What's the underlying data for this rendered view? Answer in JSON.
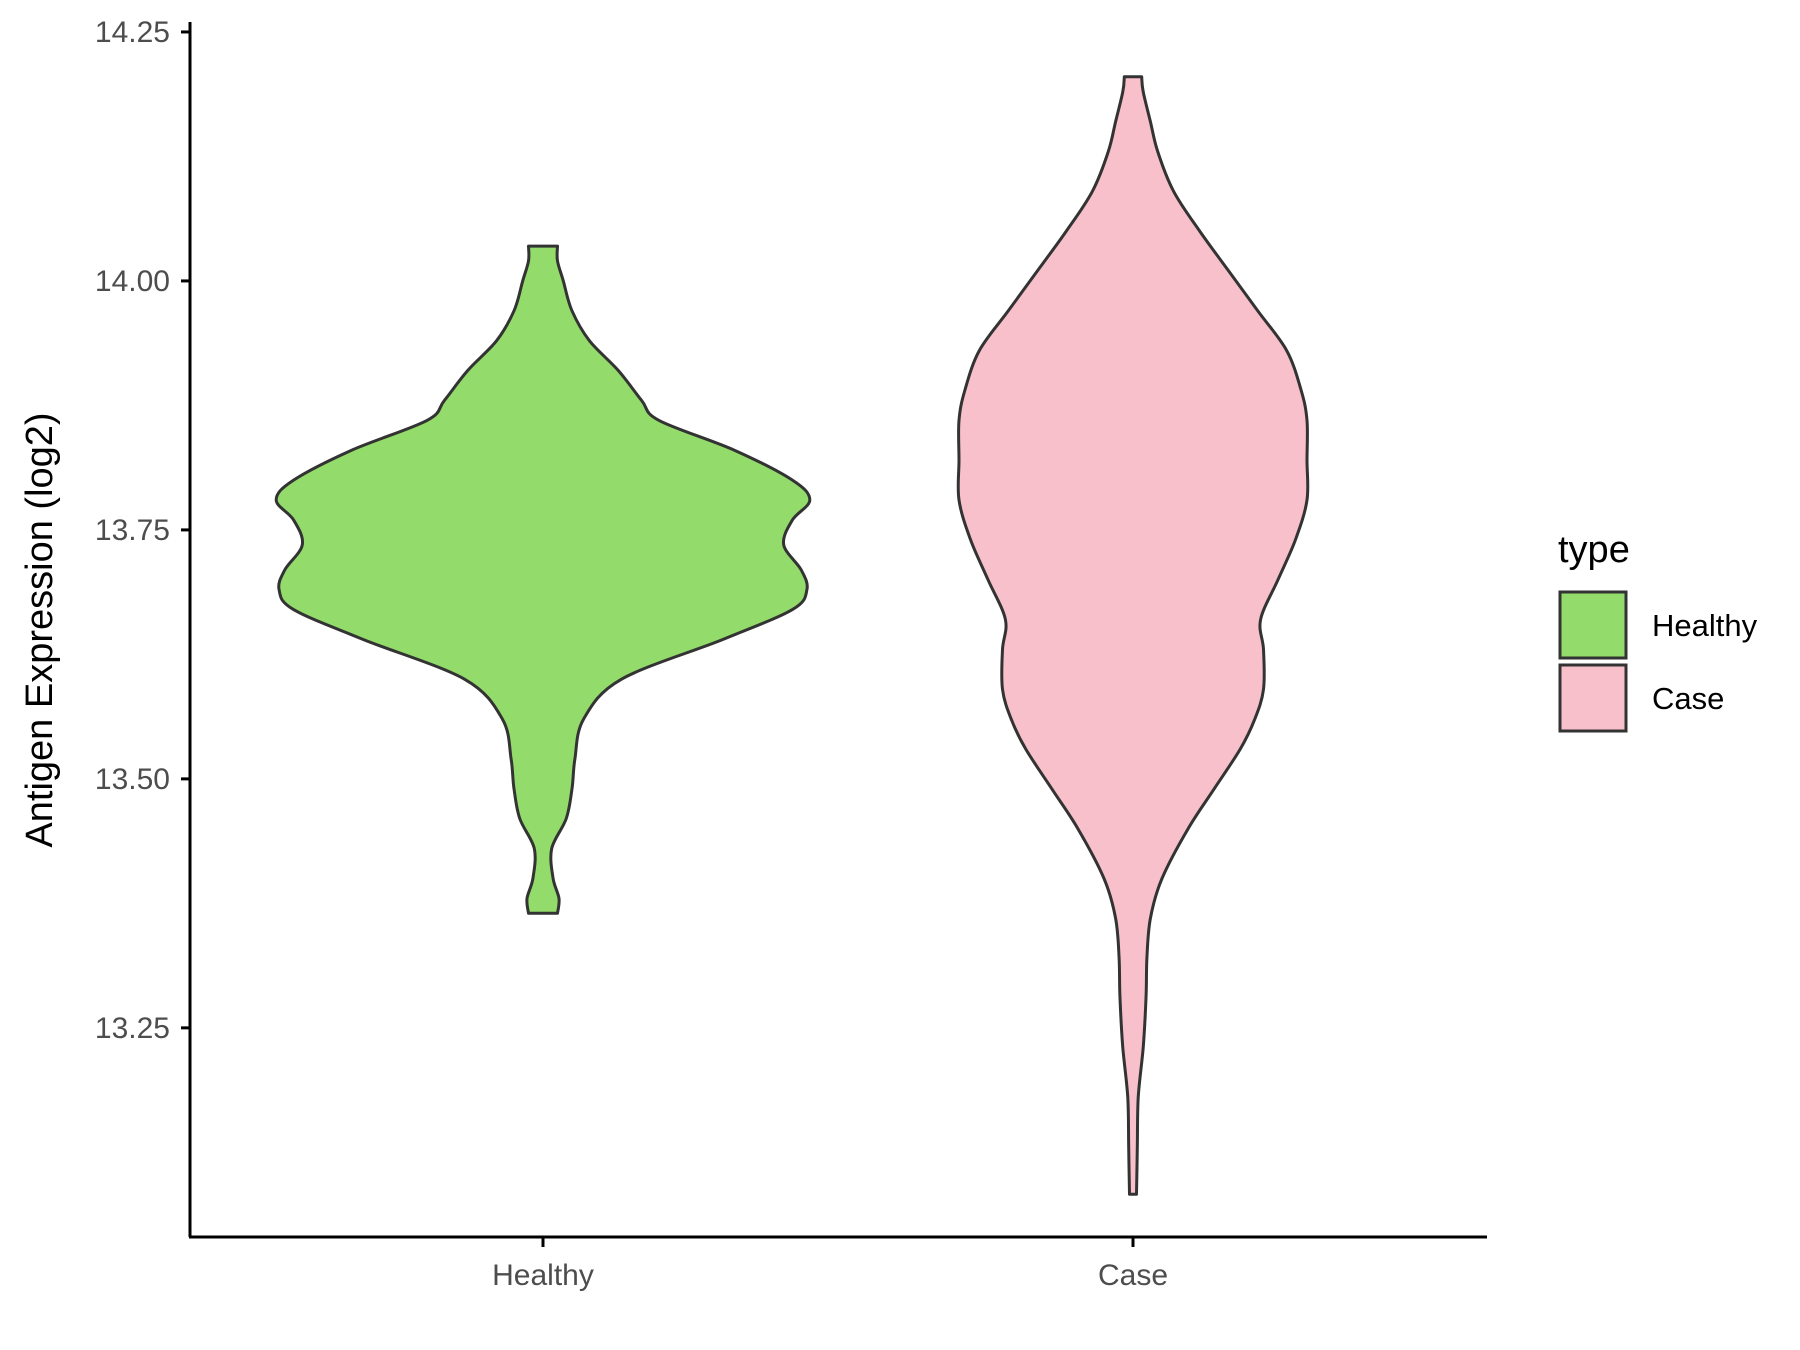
{
  "chart_data": {
    "type": "violin",
    "title": "",
    "xlabel": "",
    "ylabel": "Antigen Expression (log2)",
    "ylim": [
      13.04,
      14.26
    ],
    "yticks": [
      {
        "value": 13.25,
        "label": "13.25"
      },
      {
        "value": 13.5,
        "label": "13.50"
      },
      {
        "value": 13.75,
        "label": "13.75"
      },
      {
        "value": 14.0,
        "label": "14.00"
      },
      {
        "value": 14.25,
        "label": "14.25"
      }
    ],
    "categories": [
      "Healthy",
      "Case"
    ],
    "grid": false,
    "legend": {
      "title": "type",
      "position": "right",
      "entries": [
        {
          "label": "Healthy",
          "color": "#93dc6b"
        },
        {
          "label": "Case",
          "color": "#f7c0cb"
        }
      ]
    },
    "series": [
      {
        "name": "Healthy",
        "color": "#93dc6b",
        "y_range": [
          13.365,
          14.035
        ],
        "density_profile": [
          [
            13.365,
            0.05
          ],
          [
            13.38,
            0.055
          ],
          [
            13.4,
            0.035
          ],
          [
            13.43,
            0.03
          ],
          [
            13.46,
            0.08
          ],
          [
            13.49,
            0.1
          ],
          [
            13.52,
            0.11
          ],
          [
            13.56,
            0.14
          ],
          [
            13.6,
            0.27
          ],
          [
            13.64,
            0.62
          ],
          [
            13.67,
            0.86
          ],
          [
            13.69,
            0.91
          ],
          [
            13.71,
            0.89
          ],
          [
            13.735,
            0.83
          ],
          [
            13.76,
            0.86
          ],
          [
            13.78,
            0.92
          ],
          [
            13.8,
            0.86
          ],
          [
            13.83,
            0.66
          ],
          [
            13.86,
            0.4
          ],
          [
            13.88,
            0.34
          ],
          [
            13.91,
            0.26
          ],
          [
            13.94,
            0.16
          ],
          [
            13.97,
            0.1
          ],
          [
            14.0,
            0.07
          ],
          [
            14.02,
            0.05
          ],
          [
            14.035,
            0.05
          ]
        ]
      },
      {
        "name": "Case",
        "color": "#f7c0cb",
        "y_range": [
          13.083,
          14.205
        ],
        "density_profile": [
          [
            13.083,
            0.012
          ],
          [
            13.13,
            0.015
          ],
          [
            13.18,
            0.018
          ],
          [
            13.23,
            0.035
          ],
          [
            13.28,
            0.045
          ],
          [
            13.32,
            0.048
          ],
          [
            13.36,
            0.06
          ],
          [
            13.4,
            0.1
          ],
          [
            13.45,
            0.19
          ],
          [
            13.49,
            0.28
          ],
          [
            13.53,
            0.37
          ],
          [
            13.56,
            0.42
          ],
          [
            13.59,
            0.45
          ],
          [
            13.63,
            0.45
          ],
          [
            13.66,
            0.44
          ],
          [
            13.7,
            0.5
          ],
          [
            13.74,
            0.56
          ],
          [
            13.78,
            0.6
          ],
          [
            13.82,
            0.6
          ],
          [
            13.86,
            0.6
          ],
          [
            13.89,
            0.58
          ],
          [
            13.93,
            0.53
          ],
          [
            13.97,
            0.43
          ],
          [
            14.01,
            0.33
          ],
          [
            14.05,
            0.23
          ],
          [
            14.09,
            0.14
          ],
          [
            14.13,
            0.085
          ],
          [
            14.16,
            0.06
          ],
          [
            14.19,
            0.035
          ],
          [
            14.205,
            0.03
          ]
        ]
      }
    ]
  }
}
